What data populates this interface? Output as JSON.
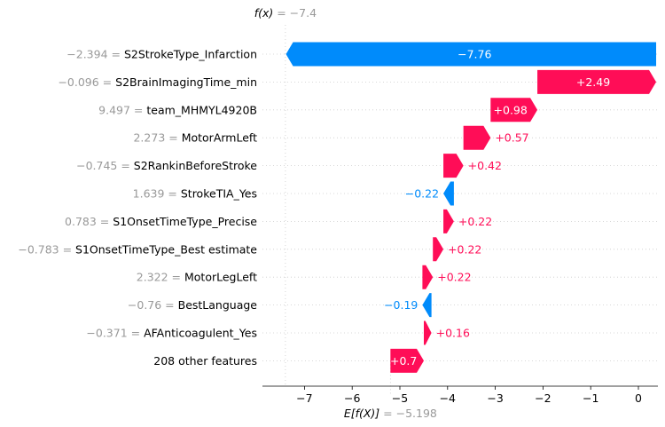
{
  "chart_data": {
    "type": "waterfall",
    "fx_label": "f(x)",
    "fx_value": "= −7.4",
    "base_label": "E[f(X)]",
    "base_value": "= −5.198",
    "base": -5.198,
    "fx": -7.4,
    "xlim": [
      -7.8,
      0.4
    ],
    "xticks": [
      -7,
      -6,
      -5,
      -4,
      -3,
      -2,
      -1,
      0
    ],
    "xtick_labels": [
      "−7",
      "−6",
      "−5",
      "−4",
      "−3",
      "−2",
      "−1",
      "0"
    ],
    "colors": {
      "positive": "#ff0d57",
      "negative": "#008bfb",
      "value_text": "#999999",
      "grid": "#cccccc"
    },
    "features": [
      {
        "value": "−2.394 =",
        "name": "S2StrokeType_Infarction",
        "contrib": -7.76,
        "label": "−7.76",
        "inside": true
      },
      {
        "value": "−0.096 =",
        "name": "S2BrainImagingTime_min",
        "contrib": 2.49,
        "label": "+2.49",
        "inside": true
      },
      {
        "value": "9.497 =",
        "name": "team_MHMYL4920B",
        "contrib": 0.98,
        "label": "+0.98",
        "inside": true
      },
      {
        "value": "2.273 =",
        "name": "MotorArmLeft",
        "contrib": 0.57,
        "label": "+0.57",
        "inside": false
      },
      {
        "value": "−0.745 =",
        "name": "S2RankinBeforeStroke",
        "contrib": 0.42,
        "label": "+0.42",
        "inside": false
      },
      {
        "value": "1.639 =",
        "name": "StrokeTIA_Yes",
        "contrib": -0.22,
        "label": "−0.22",
        "inside": false
      },
      {
        "value": "0.783 =",
        "name": "S1OnsetTimeType_Precise",
        "contrib": 0.22,
        "label": "+0.22",
        "inside": false
      },
      {
        "value": "−0.783 =",
        "name": "S1OnsetTimeType_Best estimate",
        "contrib": 0.22,
        "label": "+0.22",
        "inside": false
      },
      {
        "value": "2.322 =",
        "name": "MotorLegLeft",
        "contrib": 0.22,
        "label": "+0.22",
        "inside": false
      },
      {
        "value": "−0.76 =",
        "name": "BestLanguage",
        "contrib": -0.19,
        "label": "−0.19",
        "inside": false
      },
      {
        "value": "−0.371 =",
        "name": "AFAnticoagulent_Yes",
        "contrib": 0.16,
        "label": "+0.16",
        "inside": false
      },
      {
        "value": "",
        "name": "208 other features",
        "contrib": 0.7,
        "label": "+0.7",
        "inside": true
      }
    ]
  }
}
